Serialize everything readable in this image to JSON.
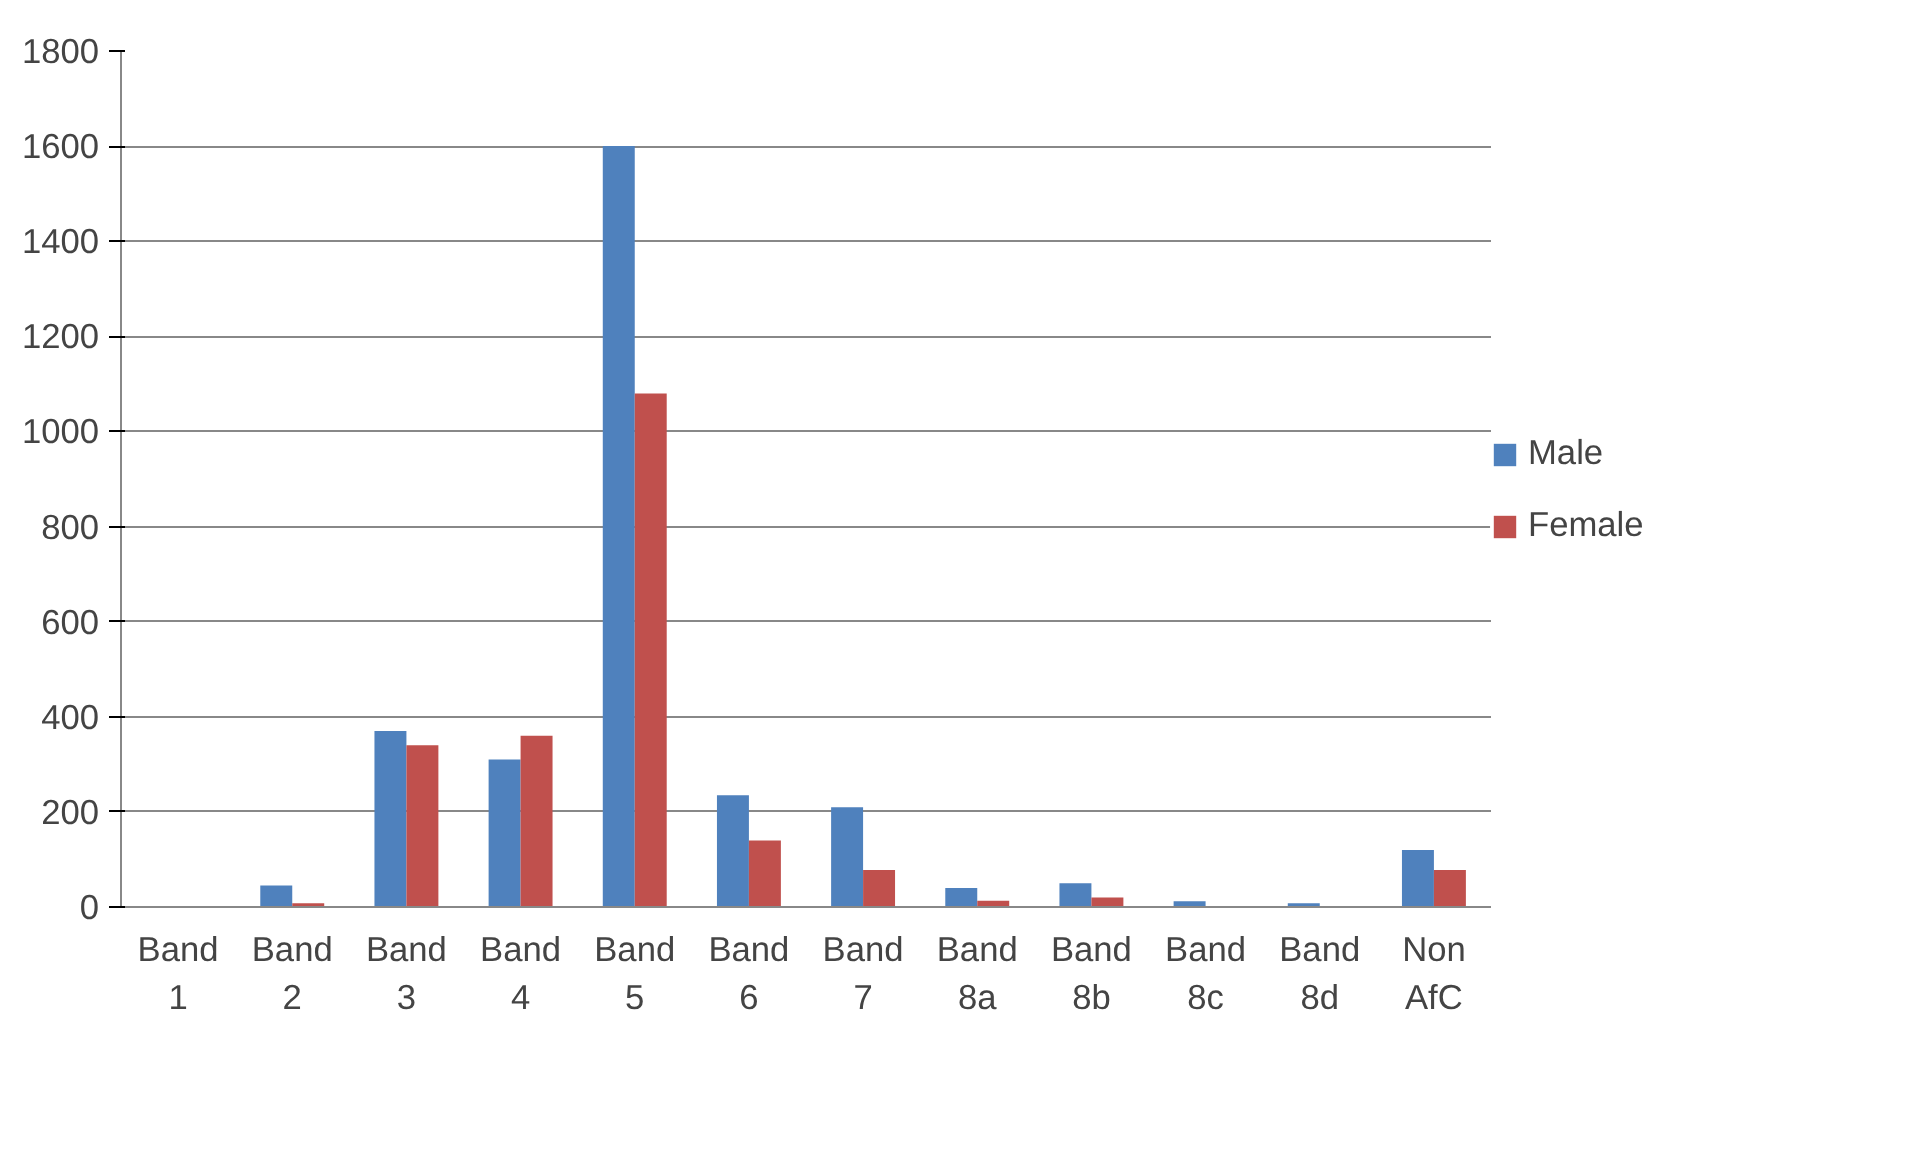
{
  "chart_data": {
    "type": "bar",
    "categories": [
      "Band\n1",
      "Band\n2",
      "Band\n3",
      "Band\n4",
      "Band\n5",
      "Band\n6",
      "Band\n7",
      "Band\n8a",
      "Band\n8b",
      "Band\n8c",
      "Band\n8d",
      "Non\nAfC"
    ],
    "series": [
      {
        "name": "Male",
        "color": "#4f81bd",
        "values": [
          0,
          45,
          370,
          310,
          1600,
          235,
          210,
          40,
          50,
          12,
          8,
          120
        ]
      },
      {
        "name": "Female",
        "color": "#c0504d",
        "values": [
          0,
          8,
          340,
          360,
          1080,
          140,
          78,
          13,
          20,
          0,
          0,
          78
        ]
      }
    ],
    "ylim": [
      0,
      1800
    ],
    "yticks": [
      0,
      200,
      400,
      600,
      800,
      1000,
      1200,
      1400,
      1600,
      1800
    ],
    "grid": "y",
    "legend": "right"
  }
}
